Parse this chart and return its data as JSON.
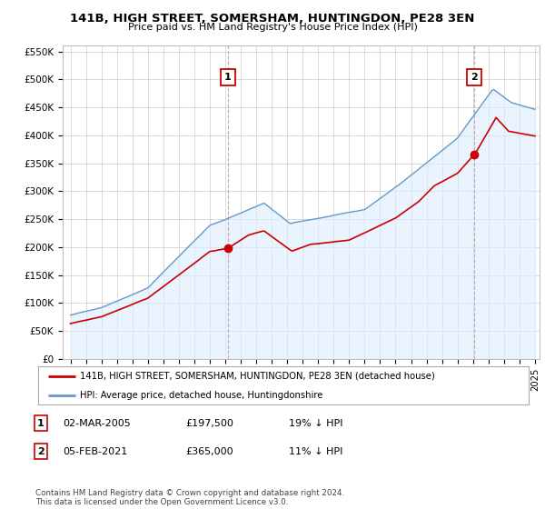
{
  "title": "141B, HIGH STREET, SOMERSHAM, HUNTINGDON, PE28 3EN",
  "subtitle": "Price paid vs. HM Land Registry's House Price Index (HPI)",
  "ylabel_ticks": [
    "£0",
    "£50K",
    "£100K",
    "£150K",
    "£200K",
    "£250K",
    "£300K",
    "£350K",
    "£400K",
    "£450K",
    "£500K",
    "£550K"
  ],
  "ytick_values": [
    0,
    50000,
    100000,
    150000,
    200000,
    250000,
    300000,
    350000,
    400000,
    450000,
    500000,
    550000
  ],
  "ylim": [
    0,
    560000
  ],
  "xlim_start": 1995,
  "xlim_end": 2025,
  "sale1": {
    "date_x": 2005.17,
    "price": 197500,
    "label": "1"
  },
  "sale2": {
    "date_x": 2021.09,
    "price": 365000,
    "label": "2"
  },
  "legend_line1": "141B, HIGH STREET, SOMERSHAM, HUNTINGDON, PE28 3EN (detached house)",
  "legend_line2": "HPI: Average price, detached house, Huntingdonshire",
  "footer": "Contains HM Land Registry data © Crown copyright and database right 2024.\nThis data is licensed under the Open Government Licence v3.0.",
  "sale_color": "#cc0000",
  "hpi_color": "#6699cc",
  "hpi_fill_color": "#ddeeff",
  "vline_color": "#cc9999",
  "background_color": "#ffffff",
  "grid_color": "#cccccc",
  "anno1_date": "02-MAR-2005",
  "anno1_price": "£197,500",
  "anno1_pct": "19% ↓ HPI",
  "anno2_date": "05-FEB-2021",
  "anno2_price": "£365,000",
  "anno2_pct": "11% ↓ HPI"
}
